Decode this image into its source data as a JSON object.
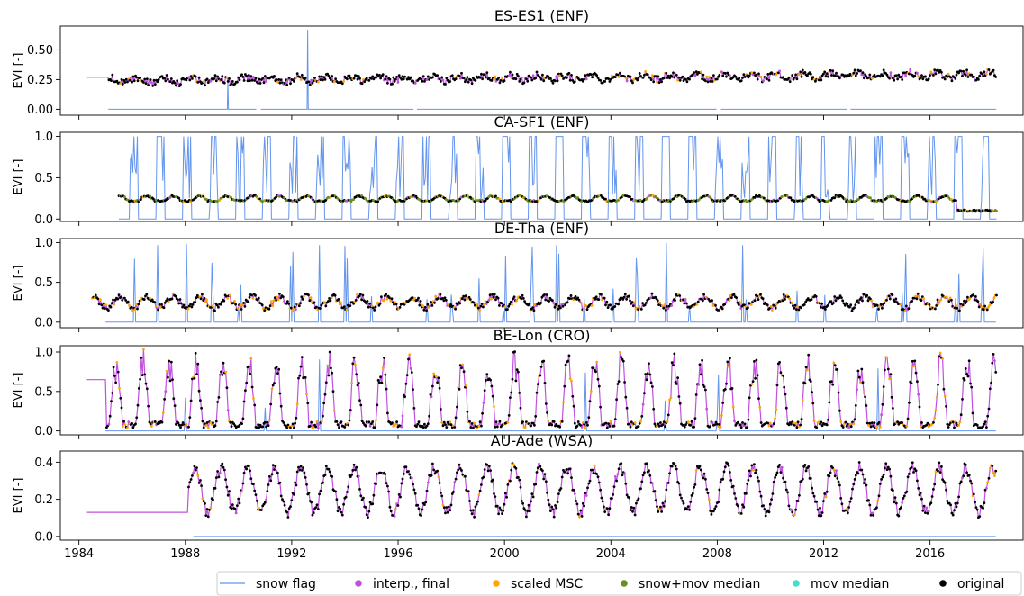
{
  "chart_data": {
    "type": "line",
    "xlabel": "",
    "xlim": [
      1983.3,
      2019.5
    ],
    "xticks": [
      "1984",
      "1988",
      "1992",
      "1996",
      "2000",
      "2004",
      "2008",
      "2012",
      "2016"
    ],
    "legend": {
      "placement": "bottom-right",
      "entries": [
        {
          "label": "snow flag",
          "kind": "line",
          "color": "#6495ED"
        },
        {
          "label": "interp., final",
          "kind": "dot",
          "color": "#C050E0"
        },
        {
          "label": "scaled MSC",
          "kind": "dot",
          "color": "#FFA500"
        },
        {
          "label": "snow+mov median",
          "kind": "dot",
          "color": "#6B8E23"
        },
        {
          "label": "mov median",
          "kind": "dot",
          "color": "#40E0D0"
        },
        {
          "label": "original",
          "kind": "dot",
          "color": "#000000"
        }
      ]
    },
    "panels": [
      {
        "title": "ES-ES1 (ENF)",
        "ylabel": "EVI [-]",
        "ylim": [
          -0.05,
          0.7
        ],
        "yticks": [
          0.0,
          0.25,
          0.5
        ],
        "ytick_labels": [
          "0.00",
          "0.25",
          "0.50"
        ],
        "start": 1984.3,
        "end": 2018.5,
        "pattern": "noisy",
        "base": 0.24,
        "trend": 0.05,
        "amp": 0.02,
        "noise": 0.03,
        "flat_until": 1985.1,
        "flat_value": 0.27,
        "snow_start": 1985.1,
        "snow_spikes": [
          [
            1989.6,
            0.25
          ],
          [
            1992.6,
            0.67
          ]
        ],
        "snow_gaps": [
          [
            1990.7,
            1990.8
          ],
          [
            1996.6,
            1996.7
          ],
          [
            2008.0,
            2008.1
          ],
          [
            2012.9,
            2013.0
          ]
        ],
        "orange_share": 0.08,
        "green_share": 0.0
      },
      {
        "title": "CA-SF1 (ENF)",
        "ylabel": "EVI [-]",
        "ylim": [
          -0.03,
          1.05
        ],
        "yticks": [
          0.0,
          0.5,
          1.0
        ],
        "ytick_labels": [
          "0.0",
          "0.5",
          "1.0"
        ],
        "start": 1985.5,
        "end": 2018.5,
        "pattern": "winterflat",
        "base": 0.22,
        "amp": 0.06,
        "noise": 0.02,
        "snow_start": 1985.5,
        "snow_mode": "winters",
        "snow_top": 1.0,
        "orange_share": 0.05,
        "green_share": 0.35
      },
      {
        "title": "DE-Tha (ENF)",
        "ylabel": "EVI [-]",
        "ylim": [
          -0.07,
          1.05
        ],
        "yticks": [
          0.0,
          0.5,
          1.0
        ],
        "ytick_labels": [
          "0.0",
          "0.5",
          "1.0"
        ],
        "start": 1984.5,
        "end": 2018.5,
        "pattern": "seasonal",
        "base": 0.25,
        "amp": 0.07,
        "noise": 0.04,
        "snow_start": 1985.0,
        "snow_mode": "some",
        "snow_top": 1.0,
        "orange_share": 0.2,
        "green_share": 0.0
      },
      {
        "title": "BE-Lon (CRO)",
        "ylabel": "EVI [-]",
        "ylim": [
          -0.05,
          1.08
        ],
        "yticks": [
          0.0,
          0.5,
          1.0
        ],
        "ytick_labels": [
          "0.0",
          "0.5",
          "1.0"
        ],
        "start": 1984.3,
        "end": 2018.5,
        "pattern": "crop",
        "base": 0.42,
        "amp": 0.34,
        "noise": 0.08,
        "flat_until": 1985.0,
        "flat_value": 0.65,
        "snow_start": 1985.0,
        "snow_mode": "rare",
        "snow_top": 1.0,
        "orange_share": 0.15,
        "green_share": 0.0
      },
      {
        "title": "AU-Ade (WSA)",
        "ylabel": "EVI [-]",
        "ylim": [
          -0.02,
          0.46
        ],
        "yticks": [
          0.0,
          0.2,
          0.4
        ],
        "ytick_labels": [
          "0.0",
          "0.2",
          "0.4"
        ],
        "start": 1984.3,
        "end": 2018.5,
        "pattern": "savanna",
        "base": 0.25,
        "amp": 0.12,
        "noise": 0.03,
        "flat_until": 1988.1,
        "flat_value": 0.13,
        "snow_start": 1988.3,
        "snow_mode": "none",
        "snow_top": 0.0,
        "orange_share": 0.06,
        "green_share": 0.0
      }
    ]
  }
}
